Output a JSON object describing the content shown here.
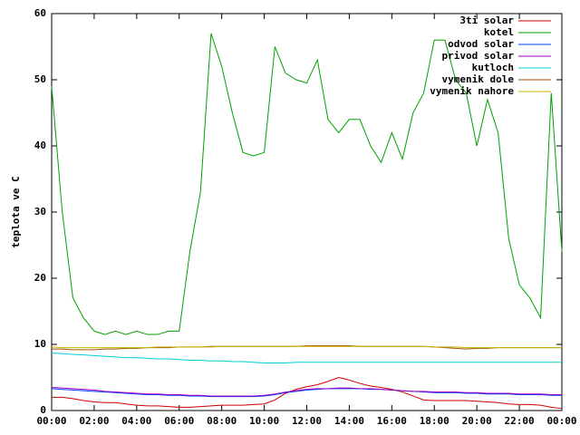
{
  "chart_data": {
    "type": "line",
    "y_label": "teplota ve C",
    "x": [
      0,
      0.5,
      1,
      1.5,
      2,
      2.5,
      3,
      3.5,
      4,
      4.5,
      5,
      5.5,
      6,
      6.5,
      7,
      7.5,
      8,
      8.5,
      9,
      9.5,
      10,
      10.5,
      11,
      11.5,
      12,
      12.5,
      13,
      13.5,
      14,
      14.5,
      15,
      15.5,
      16,
      16.5,
      17,
      17.5,
      18,
      18.5,
      19,
      19.5,
      20,
      20.5,
      21,
      21.5,
      22,
      22.5,
      23,
      23.5,
      24
    ],
    "series": [
      {
        "name": "3ti solar",
        "color": "#cc0000",
        "values": [
          2,
          2,
          1.8,
          1.5,
          1.3,
          1.2,
          1.2,
          1,
          0.8,
          0.7,
          0.7,
          0.6,
          0.5,
          0.5,
          0.6,
          0.7,
          0.8,
          0.8,
          0.8,
          0.9,
          1,
          1.6,
          2.6,
          3.2,
          3.6,
          3.9,
          4.4,
          5,
          4.6,
          4.1,
          3.7,
          3.5,
          3.2,
          2.8,
          2.2,
          1.6,
          1.5,
          1.5,
          1.5,
          1.5,
          1.4,
          1.3,
          1.2,
          1,
          0.9,
          0.9,
          0.8,
          0.5,
          0.3
        ]
      },
      {
        "name": "kotel",
        "color": "#00a000",
        "values": [
          49,
          30,
          17,
          14,
          12,
          11.5,
          12,
          11.5,
          12,
          11.5,
          11.5,
          12,
          12,
          24,
          33,
          57,
          52,
          45,
          39,
          38.5,
          39,
          55,
          51,
          50,
          49.5,
          53,
          44,
          42,
          44,
          44,
          40,
          37.5,
          42,
          38,
          45,
          48,
          56,
          56,
          50,
          48,
          40,
          47,
          42,
          26,
          19,
          17,
          14,
          48,
          24
        ]
      },
      {
        "name": "odvod solar",
        "color": "#0040ff",
        "values": [
          3.3,
          3.2,
          3.1,
          3,
          2.9,
          2.8,
          2.7,
          2.6,
          2.5,
          2.4,
          2.4,
          2.3,
          2.3,
          2.2,
          2.2,
          2.1,
          2.1,
          2.1,
          2.1,
          2.1,
          2.2,
          2.4,
          2.7,
          2.9,
          3.1,
          3.2,
          3.3,
          3.3,
          3.3,
          3.3,
          3.2,
          3.2,
          3.1,
          3,
          2.9,
          2.8,
          2.7,
          2.7,
          2.7,
          2.6,
          2.6,
          2.5,
          2.5,
          2.5,
          2.4,
          2.4,
          2.4,
          2.3,
          2.3
        ]
      },
      {
        "name": "privod solar",
        "color": "#a000c0",
        "values": [
          3.5,
          3.4,
          3.3,
          3.2,
          3.1,
          2.9,
          2.8,
          2.7,
          2.6,
          2.5,
          2.5,
          2.4,
          2.4,
          2.3,
          2.3,
          2.2,
          2.2,
          2.2,
          2.2,
          2.2,
          2.3,
          2.5,
          2.8,
          3,
          3.2,
          3.3,
          3.3,
          3.4,
          3.4,
          3.3,
          3.3,
          3.2,
          3.1,
          3,
          2.9,
          2.9,
          2.8,
          2.8,
          2.8,
          2.7,
          2.7,
          2.6,
          2.6,
          2.6,
          2.5,
          2.5,
          2.5,
          2.4,
          2.4
        ]
      },
      {
        "name": "kutloch",
        "color": "#00d0d0",
        "values": [
          8.7,
          8.6,
          8.5,
          8.4,
          8.3,
          8.2,
          8.1,
          8,
          8,
          7.9,
          7.8,
          7.8,
          7.7,
          7.6,
          7.6,
          7.5,
          7.5,
          7.4,
          7.4,
          7.3,
          7.2,
          7.2,
          7.2,
          7.3,
          7.3,
          7.3,
          7.3,
          7.3,
          7.3,
          7.3,
          7.3,
          7.3,
          7.3,
          7.3,
          7.3,
          7.3,
          7.3,
          7.3,
          7.3,
          7.3,
          7.3,
          7.3,
          7.3,
          7.3,
          7.3,
          7.3,
          7.3,
          7.3,
          7.3
        ]
      },
      {
        "name": "vymenik dole",
        "color": "#a05000",
        "values": [
          9.3,
          9.3,
          9.2,
          9.2,
          9.2,
          9.3,
          9.3,
          9.4,
          9.4,
          9.5,
          9.5,
          9.5,
          9.6,
          9.6,
          9.6,
          9.7,
          9.7,
          9.7,
          9.7,
          9.7,
          9.7,
          9.7,
          9.7,
          9.7,
          9.8,
          9.8,
          9.8,
          9.8,
          9.8,
          9.7,
          9.7,
          9.7,
          9.7,
          9.7,
          9.7,
          9.7,
          9.6,
          9.5,
          9.4,
          9.3,
          9.4,
          9.4,
          9.5,
          9.5,
          9.5,
          9.5,
          9.5,
          9.5,
          9.5
        ]
      },
      {
        "name": "vymenik nahore",
        "color": "#c8b400",
        "values": [
          9.6,
          9.5,
          9.5,
          9.5,
          9.5,
          9.5,
          9.5,
          9.5,
          9.5,
          9.5,
          9.6,
          9.6,
          9.6,
          9.6,
          9.6,
          9.6,
          9.7,
          9.7,
          9.7,
          9.7,
          9.7,
          9.7,
          9.7,
          9.7,
          9.7,
          9.7,
          9.7,
          9.7,
          9.7,
          9.7,
          9.7,
          9.7,
          9.7,
          9.7,
          9.7,
          9.7,
          9.6,
          9.6,
          9.6,
          9.5,
          9.5,
          9.5,
          9.5,
          9.5,
          9.5,
          9.5,
          9.5,
          9.5,
          9.5
        ]
      }
    ],
    "xlim": [
      0,
      24
    ],
    "xticks": [
      {
        "value": 0,
        "label": "00:00"
      },
      {
        "value": 2,
        "label": "02:00"
      },
      {
        "value": 4,
        "label": "04:00"
      },
      {
        "value": 6,
        "label": "06:00"
      },
      {
        "value": 8,
        "label": "08:00"
      },
      {
        "value": 10,
        "label": "10:00"
      },
      {
        "value": 12,
        "label": "12:00"
      },
      {
        "value": 14,
        "label": "14:00"
      },
      {
        "value": 16,
        "label": "16:00"
      },
      {
        "value": 18,
        "label": "18:00"
      },
      {
        "value": 20,
        "label": "20:00"
      },
      {
        "value": 22,
        "label": "22:00"
      },
      {
        "value": 24,
        "label": "00:00"
      }
    ],
    "ylim": [
      0,
      60
    ],
    "yticks": [
      0,
      10,
      20,
      30,
      40,
      50,
      60
    ],
    "grid": false,
    "legend": "top-right"
  }
}
